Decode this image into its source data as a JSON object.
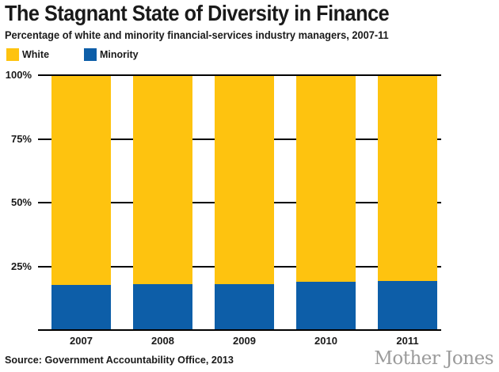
{
  "header": {
    "title": "The Stagnant State of Diversity in Finance",
    "subtitle": "Percentage of white and minority financial-services industry managers, 2007-11"
  },
  "legend": {
    "items": [
      {
        "label": "White",
        "color": "#FEC30F"
      },
      {
        "label": "Minority",
        "color": "#0D5EA8"
      }
    ]
  },
  "chart_data": {
    "type": "bar",
    "stacked": true,
    "title": "The Stagnant State of Diversity in Finance",
    "subtitle": "Percentage of white and minority financial-services industry managers, 2007-11",
    "categories": [
      "2007",
      "2008",
      "2009",
      "2010",
      "2011"
    ],
    "series": [
      {
        "name": "White",
        "color": "#FEC30F",
        "values": [
          82.6,
          82.3,
          82.3,
          81.2,
          81.0
        ]
      },
      {
        "name": "Minority",
        "color": "#0D5EA8",
        "values": [
          17.4,
          17.7,
          17.7,
          18.8,
          19.0
        ]
      }
    ],
    "xlabel": "",
    "ylabel": "",
    "ylim": [
      0,
      100
    ],
    "yticks": [
      {
        "label": "100%",
        "value": 100
      },
      {
        "label": "75%",
        "value": 75
      },
      {
        "label": "50%",
        "value": 50
      },
      {
        "label": "25%",
        "value": 25
      }
    ],
    "grid": true,
    "gridline_color": "#000000",
    "legend_position": "top-left"
  },
  "footer": {
    "source": "Source: Government Accountability Office, 2013",
    "brand": "Mother Jones"
  }
}
